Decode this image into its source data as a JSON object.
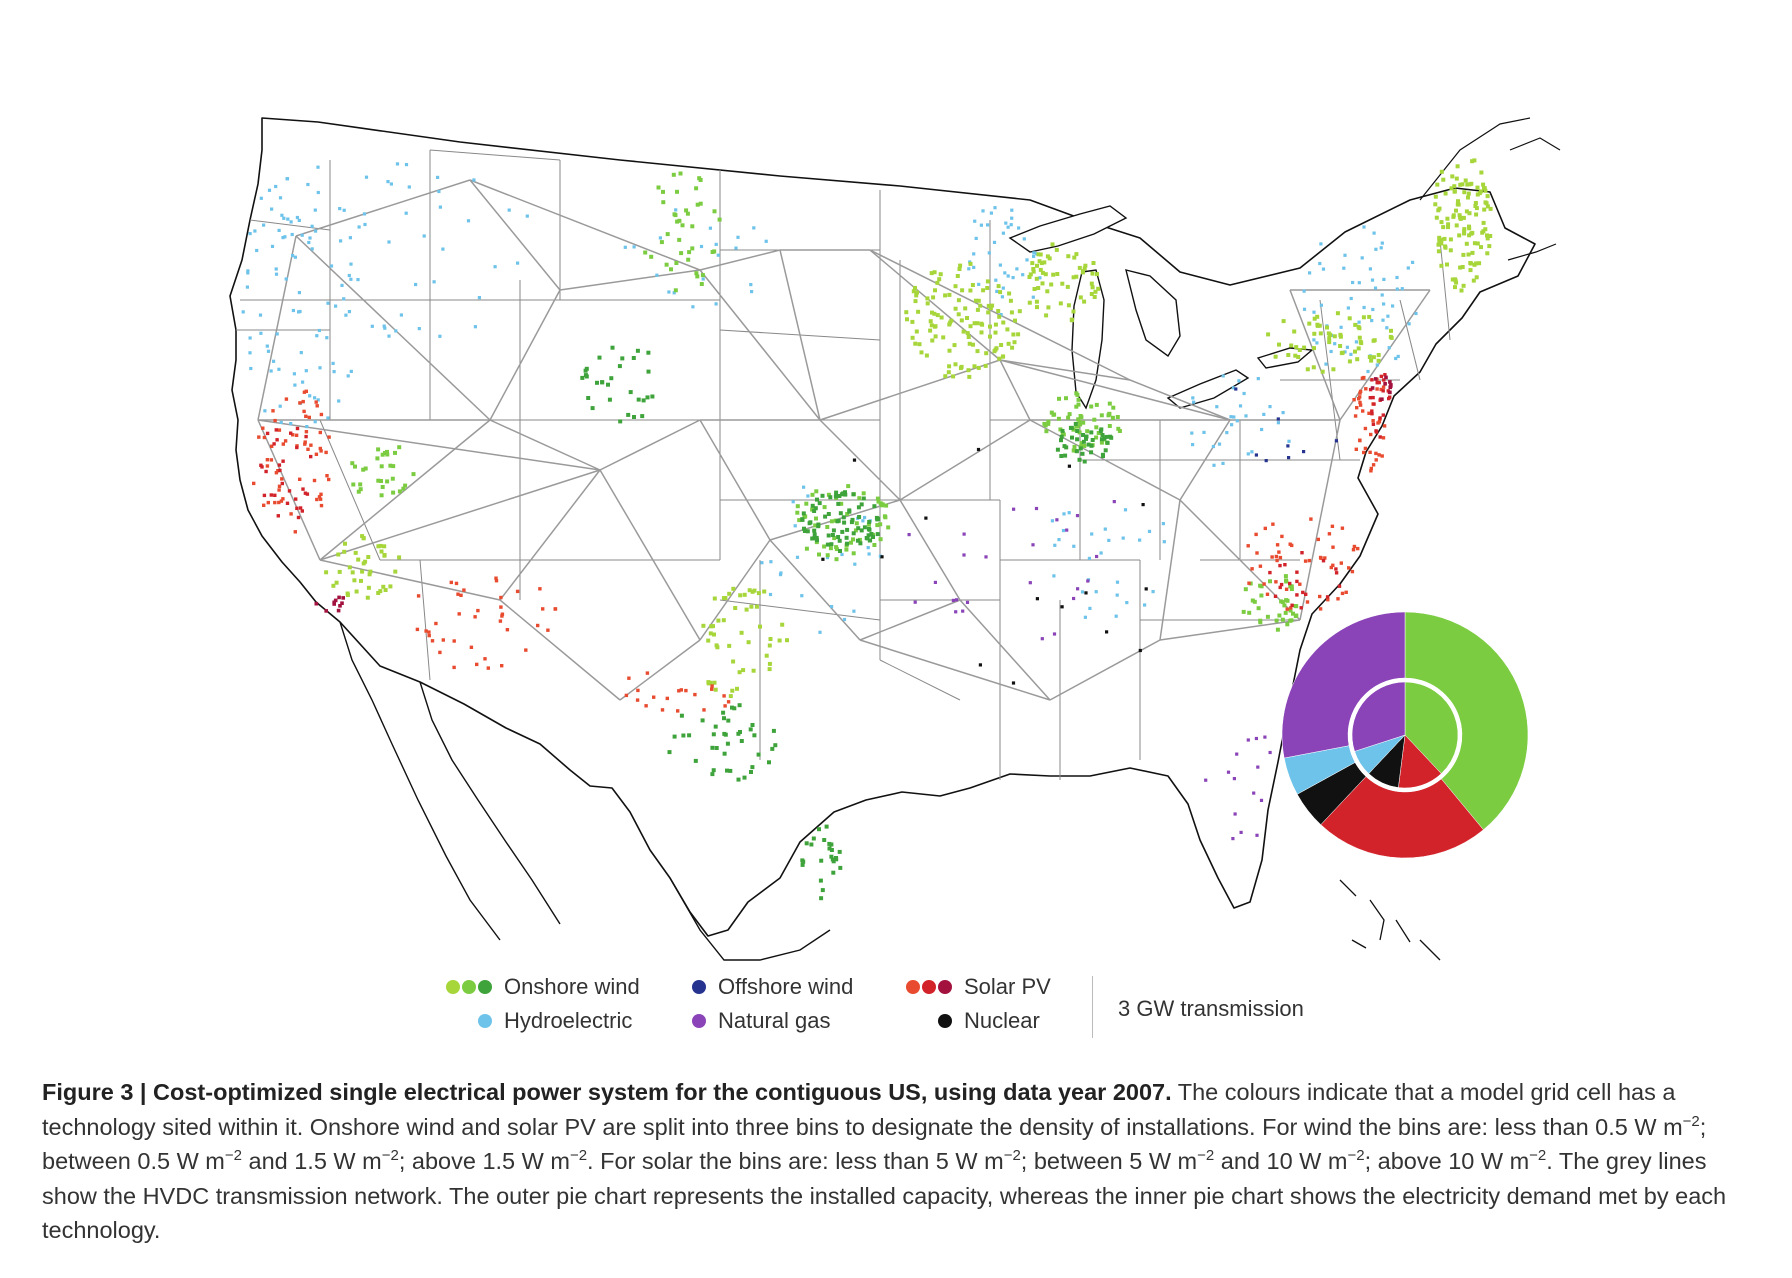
{
  "colors": {
    "wind_low": "#a6d63a",
    "wind_mid": "#7ccc42",
    "wind_high": "#3ea33a",
    "hydro": "#6ec3ea",
    "offshore_wind": "#26348f",
    "natural_gas": "#8a44b8",
    "solar_low": "#e84b2f",
    "solar_mid": "#d2232a",
    "solar_high": "#a3123f",
    "nuclear": "#111111",
    "transmission": "#9a9a9a"
  },
  "legend": {
    "onshore_wind": "Onshore wind",
    "hydroelectric": "Hydroelectric",
    "offshore_wind": "Offshore wind",
    "natural_gas": "Natural gas",
    "solar_pv": "Solar PV",
    "nuclear": "Nuclear",
    "transmission": "3 GW transmission"
  },
  "pie": {
    "outer_installed_capacity": [
      {
        "tech": "Onshore wind",
        "share": 0.39
      },
      {
        "tech": "Solar PV",
        "share": 0.23
      },
      {
        "tech": "Nuclear",
        "share": 0.05
      },
      {
        "tech": "Hydroelectric",
        "share": 0.05
      },
      {
        "tech": "Natural gas",
        "share": 0.28
      }
    ],
    "inner_demand_met": [
      {
        "tech": "Onshore wind",
        "share": 0.38
      },
      {
        "tech": "Solar PV",
        "share": 0.14
      },
      {
        "tech": "Nuclear",
        "share": 0.1
      },
      {
        "tech": "Hydroelectric",
        "share": 0.08
      },
      {
        "tech": "Natural gas",
        "share": 0.3
      }
    ]
  },
  "caption": {
    "title": "Figure 3 | Cost-optimized single electrical power system for the contiguous US, using data year 2007.",
    "t1": " The colours indicate that a model grid cell has a technology sited within it. Onshore wind and solar PV are split into three bins to designate the density of installations. For wind the bins are: less than 0.5 W m",
    "t2": "; between 0.5 W m",
    "t3": " and 1.5 W m",
    "t4": "; above 1.5 W m",
    "t5": ". For solar the bins are: less than 5 W m",
    "t6": "; between 5 W m",
    "t7": " and 10 W m",
    "t8": "; above 10 W m",
    "t9": ". The grey lines show the HVDC transmission network. The outer pie chart represents the installed capacity, whereas the inner pie chart shows the electricity demand met by each technology.",
    "exp": "−2"
  }
}
